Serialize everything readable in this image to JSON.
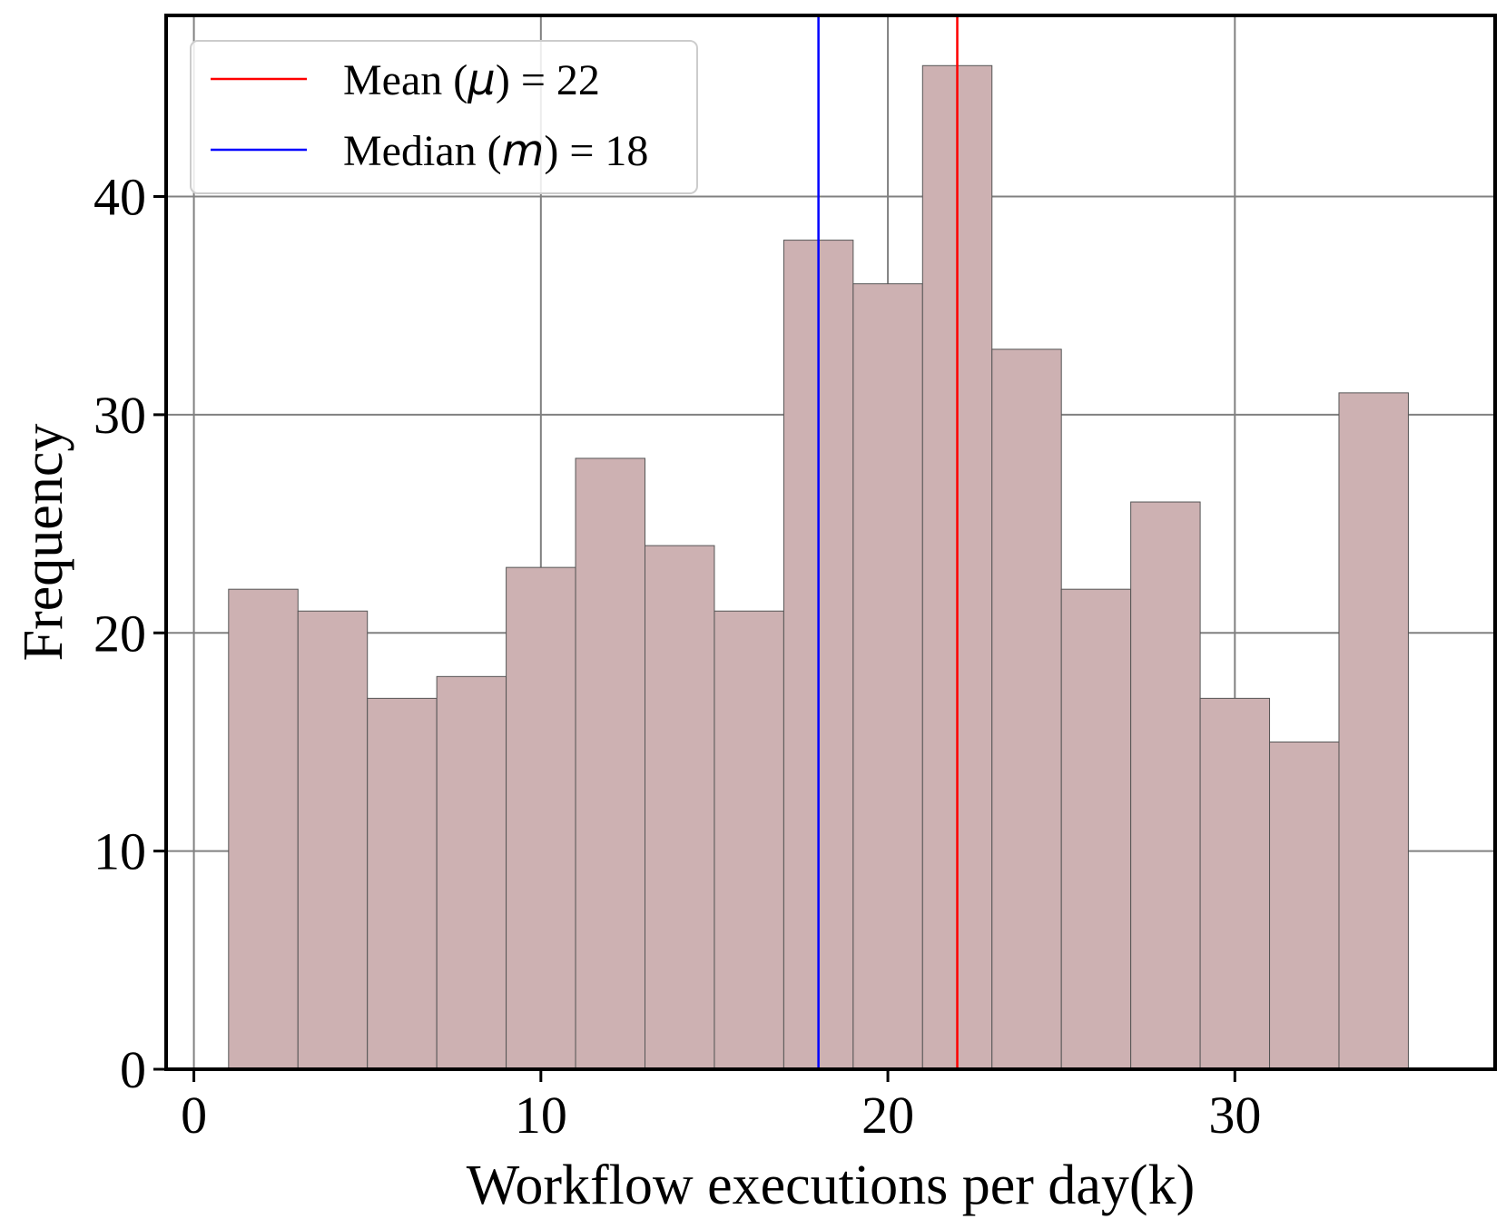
{
  "chart_data": {
    "type": "bar",
    "subtype": "histogram",
    "title": "",
    "xlabel": "Workflow executions per day(k)",
    "ylabel": "Frequency",
    "xlim": [
      -0.8,
      37.5
    ],
    "ylim": [
      0,
      48.3
    ],
    "xticks": [
      0,
      10,
      20,
      30
    ],
    "yticks": [
      0,
      10,
      20,
      30,
      40
    ],
    "grid": true,
    "legend_position": "top-left",
    "bin_width": 2,
    "bins": [
      {
        "x0": 1,
        "x1": 3,
        "value": 22
      },
      {
        "x0": 3,
        "x1": 5,
        "value": 21
      },
      {
        "x0": 5,
        "x1": 7,
        "value": 17
      },
      {
        "x0": 7,
        "x1": 9,
        "value": 18
      },
      {
        "x0": 9,
        "x1": 11,
        "value": 23
      },
      {
        "x0": 11,
        "x1": 13,
        "value": 28
      },
      {
        "x0": 13,
        "x1": 15,
        "value": 24
      },
      {
        "x0": 15,
        "x1": 17,
        "value": 21
      },
      {
        "x0": 17,
        "x1": 19,
        "value": 38
      },
      {
        "x0": 19,
        "x1": 21,
        "value": 36
      },
      {
        "x0": 21,
        "x1": 23,
        "value": 46
      },
      {
        "x0": 23,
        "x1": 25,
        "value": 33
      },
      {
        "x0": 25,
        "x1": 27,
        "value": 22
      },
      {
        "x0": 27,
        "x1": 29,
        "value": 26
      },
      {
        "x0": 29,
        "x1": 31,
        "value": 17
      },
      {
        "x0": 31,
        "x1": 33,
        "value": 15
      },
      {
        "x0": 33,
        "x1": 35,
        "value": 31
      }
    ],
    "bar_color": "#cdb1b2",
    "bar_edge_color": "#555555",
    "reference_lines": [
      {
        "x": 22,
        "color": "#ff0000",
        "legend_prefix": "Mean (",
        "legend_symbol": "μ",
        "legend_suffix": ") = 22"
      },
      {
        "x": 18,
        "color": "#0000ff",
        "legend_prefix": "Median (",
        "legend_symbol": "m",
        "legend_suffix": ") = 18"
      }
    ]
  }
}
